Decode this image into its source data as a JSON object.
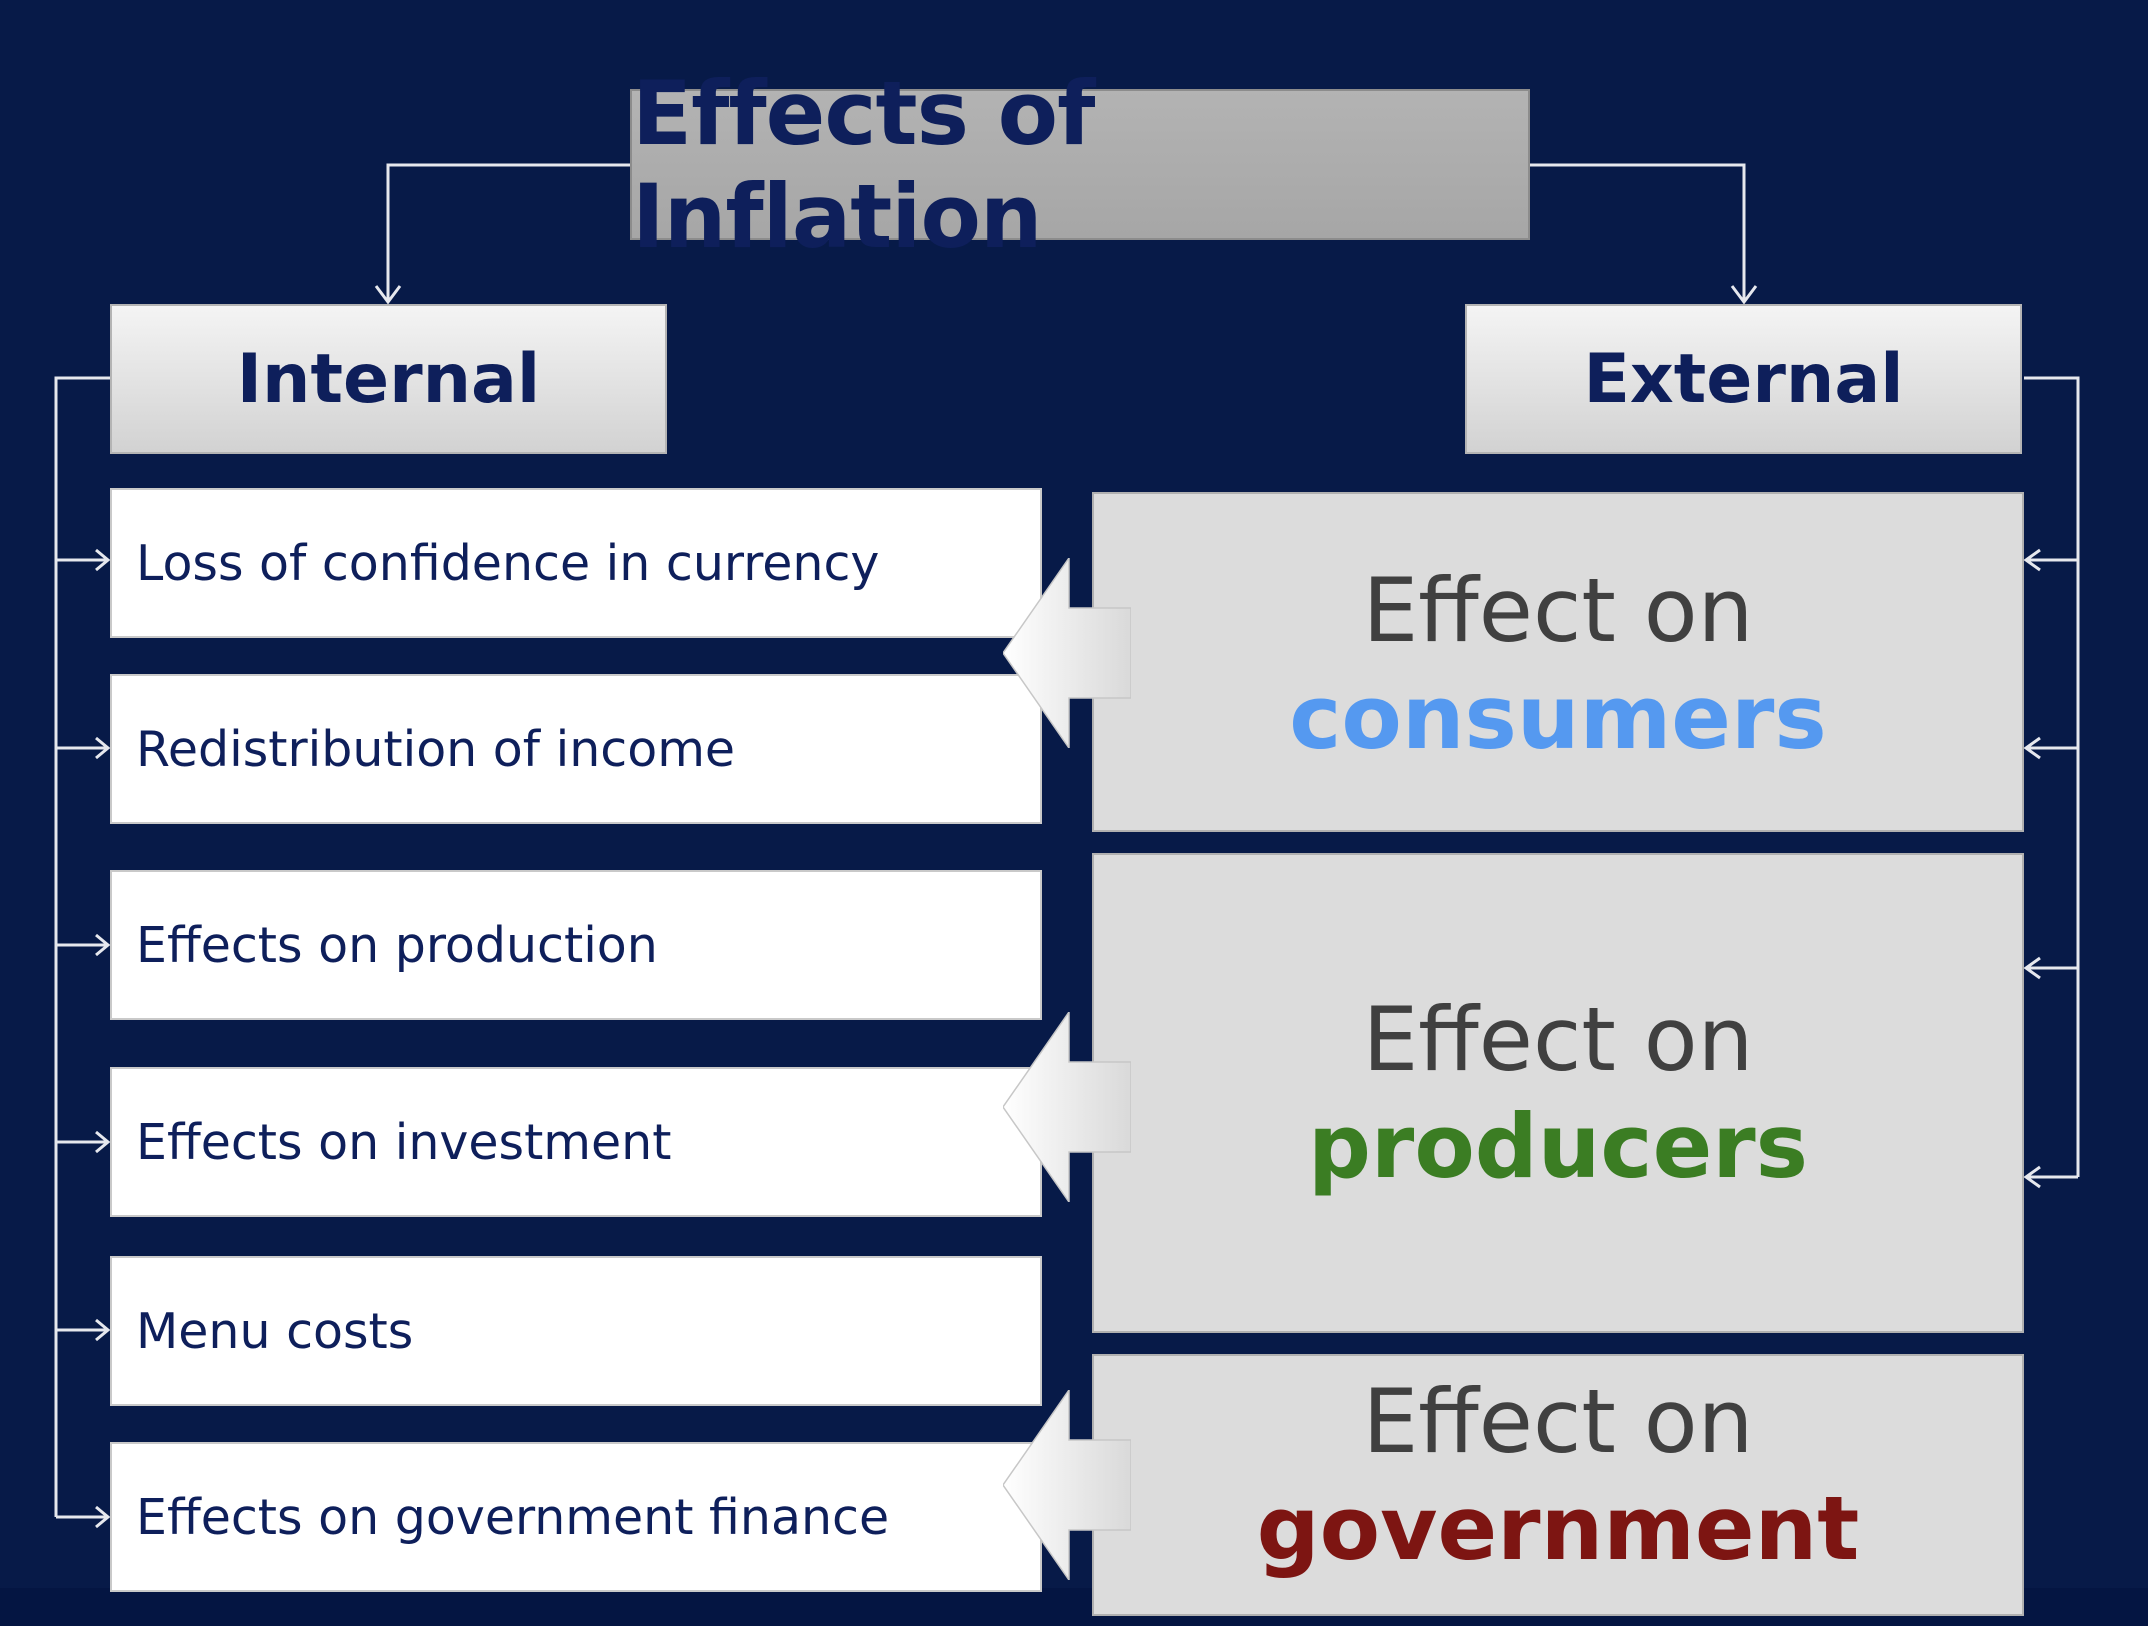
{
  "title": "Effects of Inflation",
  "categories": {
    "internal": "Internal",
    "external": "External"
  },
  "internal_items": [
    "Loss of confidence in currency",
    "Redistribution of income",
    "Effects on production",
    "Effects on investment",
    "Menu costs",
    "Effects on government finance"
  ],
  "external_effects": [
    {
      "lead": "Effect on",
      "target": "consumers",
      "color": "#5599f0"
    },
    {
      "lead": "Effect on",
      "target": "producers",
      "color": "#3b7d23"
    },
    {
      "lead": "Effect on",
      "target": "government",
      "color": "#7d1512"
    }
  ],
  "colors": {
    "background": "#071a48",
    "text_dark_blue": "#0e1f5b",
    "title_box": "#a6a6a6",
    "external_box": "#dcdcdc"
  }
}
